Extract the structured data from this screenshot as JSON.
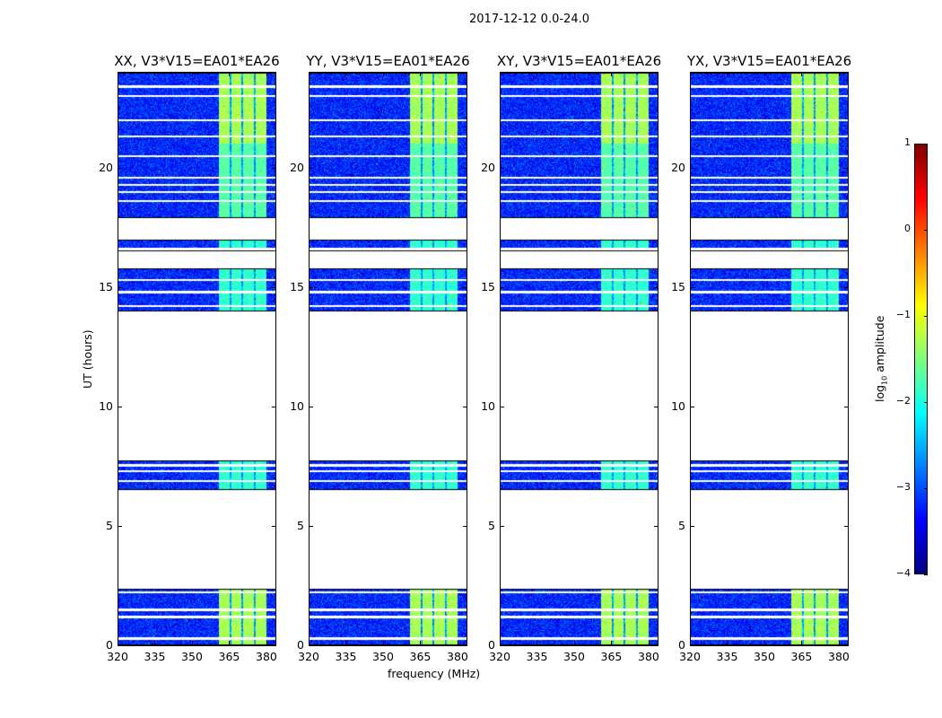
{
  "chart_data": {
    "type": "heatmap",
    "suptitle": "2017-12-12 0.0-24.0",
    "xlabel": "frequency (MHz)",
    "ylabel": "UT (hours)",
    "xlim": [
      320,
      384
    ],
    "ylim": [
      0,
      24
    ],
    "xticks": [
      320,
      335,
      350,
      365,
      380
    ],
    "yticks": [
      0,
      5,
      10,
      15,
      20
    ],
    "panels": [
      {
        "title": "XX, V3*V15=EA01*EA26",
        "seed": 1
      },
      {
        "title": "YY, V3*V15=EA01*EA26",
        "seed": 2
      },
      {
        "title": "XY, V3*V15=EA01*EA26",
        "seed": 3
      },
      {
        "title": "YX, V3*V15=EA01*EA26",
        "seed": 4
      }
    ],
    "time_segments_hours": [
      [
        0,
        2.4
      ],
      [
        6.5,
        7.75
      ],
      [
        14.0,
        15.8
      ],
      [
        16.5,
        17.0
      ],
      [
        17.9,
        24.0
      ]
    ],
    "flagged_rows_hours": [
      0.3,
      1.2,
      1.5,
      2.25,
      6.9,
      7.3,
      7.55,
      14.2,
      14.8,
      15.3,
      16.6,
      18.6,
      19.0,
      19.3,
      19.6,
      20.5,
      21.3,
      22.0,
      23.0,
      23.4
    ],
    "bright_band_mhz": [
      360.5,
      380
    ],
    "band_gaps_mhz": [
      365.5,
      370.2,
      375.2
    ],
    "background_log_amplitude": -3.2,
    "band_log_amplitude": -1.3,
    "colorbar": {
      "label": "log10 amplitude",
      "label_main": "log",
      "label_sub": "10",
      "label_rest": " amplitude",
      "colormap": "jet",
      "range": [
        -4,
        1
      ],
      "ticks": [
        "1",
        "0",
        "−1",
        "−2",
        "−3",
        "−4"
      ]
    }
  }
}
